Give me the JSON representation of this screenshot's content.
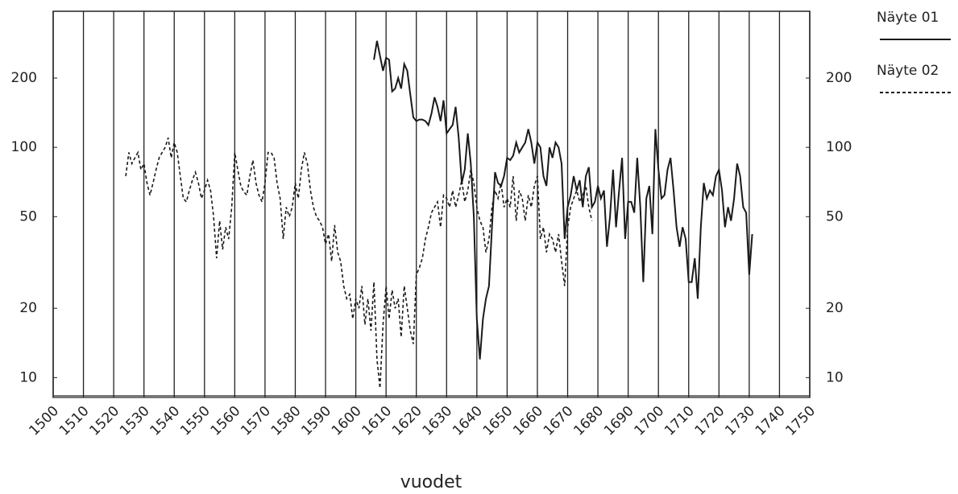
{
  "chart_data": {
    "type": "line",
    "x_label": "vuodet",
    "log_scale": true,
    "xgrid": true,
    "xlim": [
      1500,
      1750
    ],
    "xticks": [
      1500,
      1510,
      1520,
      1530,
      1540,
      1550,
      1560,
      1570,
      1580,
      1590,
      1600,
      1610,
      1620,
      1630,
      1640,
      1650,
      1660,
      1670,
      1680,
      1690,
      1700,
      1710,
      1720,
      1730,
      1740,
      1750
    ],
    "ylim": [
      8.2,
      390
    ],
    "yticks": [
      10,
      20,
      50,
      100,
      200
    ],
    "x": [
      1524,
      1525,
      1526,
      1527,
      1528,
      1529,
      1530,
      1531,
      1532,
      1533,
      1534,
      1535,
      1536,
      1537,
      1538,
      1539,
      1540,
      1541,
      1542,
      1543,
      1544,
      1545,
      1546,
      1547,
      1548,
      1549,
      1550,
      1551,
      1552,
      1553,
      1554,
      1555,
      1556,
      1557,
      1558,
      1559,
      1560,
      1561,
      1562,
      1563,
      1564,
      1565,
      1566,
      1567,
      1568,
      1569,
      1570,
      1571,
      1572,
      1573,
      1574,
      1575,
      1576,
      1577,
      1578,
      1579,
      1580,
      1581,
      1582,
      1583,
      1584,
      1585,
      1586,
      1587,
      1588,
      1589,
      1590,
      1591,
      1592,
      1593,
      1594,
      1595,
      1596,
      1597,
      1598,
      1599,
      1600,
      1601,
      1602,
      1603,
      1604,
      1605,
      1606,
      1607,
      1608,
      1609,
      1610,
      1611,
      1612,
      1613,
      1614,
      1615,
      1616,
      1617,
      1618,
      1619,
      1620,
      1621,
      1622,
      1623,
      1624,
      1625,
      1626,
      1627,
      1628,
      1629,
      1630,
      1631,
      1632,
      1633,
      1634,
      1635,
      1636,
      1637,
      1638,
      1639,
      1640,
      1641,
      1642,
      1643,
      1644,
      1645,
      1646,
      1647,
      1648,
      1649,
      1650,
      1651,
      1652,
      1653,
      1654,
      1655,
      1656,
      1657,
      1658,
      1659,
      1660,
      1661,
      1662,
      1663,
      1664,
      1665,
      1666,
      1667,
      1668,
      1669,
      1670,
      1671,
      1672,
      1673,
      1674,
      1675,
      1676,
      1677,
      1678,
      1679,
      1680,
      1681,
      1682,
      1683,
      1684,
      1685,
      1686,
      1687,
      1688,
      1689,
      1690,
      1691,
      1692,
      1693,
      1694,
      1695,
      1696,
      1697,
      1698,
      1699,
      1700,
      1701,
      1702,
      1703,
      1704,
      1705,
      1706,
      1707,
      1708,
      1709,
      1710,
      1711,
      1712,
      1713,
      1714,
      1715,
      1716,
      1717,
      1718,
      1719,
      1720,
      1721,
      1722,
      1723,
      1724,
      1725,
      1726,
      1727,
      1728,
      1729,
      1730,
      1731
    ],
    "series": [
      {
        "name": "Näyte 01",
        "color": "#1a1a1a",
        "style": "solid",
        "values": [
          null,
          null,
          null,
          null,
          null,
          null,
          null,
          null,
          null,
          null,
          null,
          null,
          null,
          null,
          null,
          null,
          null,
          null,
          null,
          null,
          null,
          null,
          null,
          null,
          null,
          null,
          null,
          null,
          null,
          null,
          null,
          null,
          null,
          null,
          null,
          null,
          null,
          null,
          null,
          null,
          null,
          null,
          null,
          null,
          null,
          null,
          null,
          null,
          null,
          null,
          null,
          null,
          null,
          null,
          null,
          null,
          null,
          null,
          null,
          null,
          null,
          null,
          null,
          null,
          null,
          null,
          null,
          null,
          null,
          null,
          null,
          null,
          null,
          null,
          null,
          null,
          null,
          null,
          null,
          null,
          null,
          null,
          240,
          290,
          250,
          215,
          245,
          240,
          175,
          180,
          200,
          180,
          230,
          215,
          170,
          135,
          130,
          132,
          132,
          130,
          125,
          140,
          165,
          150,
          130,
          160,
          115,
          120,
          125,
          150,
          110,
          70,
          80,
          115,
          85,
          50,
          18,
          12,
          18,
          22,
          25,
          45,
          78,
          70,
          68,
          75,
          90,
          88,
          92,
          105,
          95,
          100,
          105,
          120,
          105,
          85,
          105,
          100,
          75,
          68,
          100,
          90,
          105,
          100,
          85,
          40,
          55,
          62,
          75,
          65,
          72,
          55,
          75,
          82,
          55,
          58,
          68,
          60,
          65,
          37,
          50,
          80,
          45,
          65,
          90,
          40,
          58,
          58,
          52,
          90,
          55,
          26,
          60,
          68,
          42,
          120,
          80,
          60,
          62,
          80,
          90,
          65,
          45,
          37,
          45,
          40,
          26,
          26,
          33,
          22,
          45,
          70,
          60,
          65,
          62,
          75,
          80,
          65,
          45,
          55,
          48,
          60,
          85,
          75,
          55,
          52,
          28,
          42
        ]
      },
      {
        "name": "Näyte 02",
        "color": "#1a1a1a",
        "style": "dashed",
        "values": [
          75,
          95,
          85,
          90,
          95,
          80,
          85,
          70,
          62,
          70,
          80,
          90,
          95,
          100,
          110,
          90,
          105,
          95,
          75,
          60,
          58,
          65,
          72,
          78,
          70,
          60,
          65,
          72,
          65,
          50,
          33,
          48,
          36,
          45,
          40,
          55,
          95,
          80,
          68,
          64,
          62,
          75,
          88,
          70,
          62,
          58,
          70,
          95,
          95,
          90,
          70,
          60,
          40,
          55,
          50,
          55,
          70,
          60,
          80,
          95,
          85,
          65,
          55,
          50,
          48,
          45,
          38,
          42,
          32,
          46,
          35,
          32,
          25,
          22,
          23,
          18,
          22,
          20,
          25,
          17,
          22,
          16,
          26,
          12,
          9,
          17,
          25,
          18,
          24,
          20,
          22,
          15,
          25,
          20,
          16,
          14,
          28,
          30,
          33,
          40,
          45,
          52,
          55,
          58,
          45,
          62,
          60,
          55,
          65,
          55,
          62,
          72,
          58,
          65,
          80,
          70,
          55,
          48,
          45,
          35,
          40,
          55,
          65,
          60,
          70,
          55,
          60,
          55,
          75,
          48,
          65,
          60,
          48,
          62,
          55,
          68,
          75,
          40,
          45,
          35,
          42,
          40,
          35,
          42,
          32,
          25,
          45,
          55,
          60,
          65,
          58,
          62,
          68,
          55,
          48,
          null,
          null,
          null,
          null,
          null,
          null,
          null,
          null,
          null,
          null,
          null,
          null,
          null,
          null,
          null,
          null,
          null,
          null,
          null,
          null,
          null,
          null,
          null,
          null,
          null,
          null,
          null,
          null,
          null,
          null,
          null,
          null,
          null,
          null,
          null,
          null,
          null,
          null,
          null,
          null,
          null,
          null,
          null,
          null,
          null,
          null,
          null,
          null,
          null,
          null,
          null,
          null,
          null
        ]
      }
    ]
  }
}
